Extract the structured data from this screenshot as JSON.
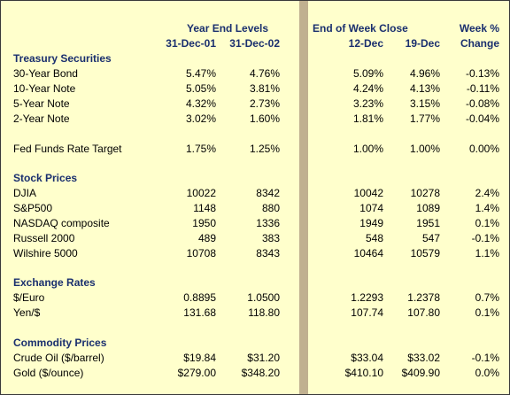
{
  "headers": {
    "year_end": "Year End Levels",
    "end_of_week": "End of Week Close",
    "week_pct": "Week %",
    "col_dec01": "31-Dec-01",
    "col_dec02": "31-Dec-02",
    "col_12dec": "12-Dec",
    "col_19dec": "19-Dec",
    "col_change": "Change"
  },
  "sections": {
    "treasury": {
      "title": "Treasury Securities",
      "rows": [
        {
          "label": "30-Year Bond",
          "v": [
            "5.47%",
            "4.76%",
            "5.09%",
            "4.96%",
            "-0.13%"
          ]
        },
        {
          "label": "10-Year Note",
          "v": [
            "5.05%",
            "3.81%",
            "4.24%",
            "4.13%",
            "-0.11%"
          ]
        },
        {
          "label": "5-Year Note",
          "v": [
            "4.32%",
            "2.73%",
            "3.23%",
            "3.15%",
            "-0.08%"
          ]
        },
        {
          "label": "2-Year Note",
          "v": [
            "3.02%",
            "1.60%",
            "1.81%",
            "1.77%",
            "-0.04%"
          ]
        },
        {
          "label": "Fed Funds Rate Target",
          "v": [
            "1.75%",
            "1.25%",
            "1.00%",
            "1.00%",
            "0.00%"
          ]
        }
      ]
    },
    "stocks": {
      "title": "Stock Prices",
      "rows": [
        {
          "label": "DJIA",
          "v": [
            "10022",
            "8342",
            "10042",
            "10278",
            "2.4%"
          ]
        },
        {
          "label": "S&P500",
          "v": [
            "1148",
            "880",
            "1074",
            "1089",
            "1.4%"
          ]
        },
        {
          "label": "NASDAQ composite",
          "v": [
            "1950",
            "1336",
            "1949",
            "1951",
            "0.1%"
          ]
        },
        {
          "label": "Russell 2000",
          "v": [
            "489",
            "383",
            "548",
            "547",
            "-0.1%"
          ]
        },
        {
          "label": "Wilshire 5000",
          "v": [
            "10708",
            "8343",
            "10464",
            "10579",
            "1.1%"
          ]
        }
      ]
    },
    "fx": {
      "title": "Exchange Rates",
      "rows": [
        {
          "label": "$/Euro",
          "v": [
            "0.8895",
            "1.0500",
            "1.2293",
            "1.2378",
            "0.7%"
          ]
        },
        {
          "label": "Yen/$",
          "v": [
            "131.68",
            "118.80",
            "107.74",
            "107.80",
            "0.1%"
          ]
        }
      ]
    },
    "commodities": {
      "title": "Commodity Prices",
      "rows": [
        {
          "label": "Crude Oil ($/barrel)",
          "v": [
            "$19.84",
            "$31.20",
            "$33.04",
            "$33.02",
            "-0.1%"
          ]
        },
        {
          "label": "Gold ($/ounce)",
          "v": [
            "$279.00",
            "$348.20",
            "$410.10",
            "$409.90",
            "0.0%"
          ]
        }
      ]
    }
  }
}
